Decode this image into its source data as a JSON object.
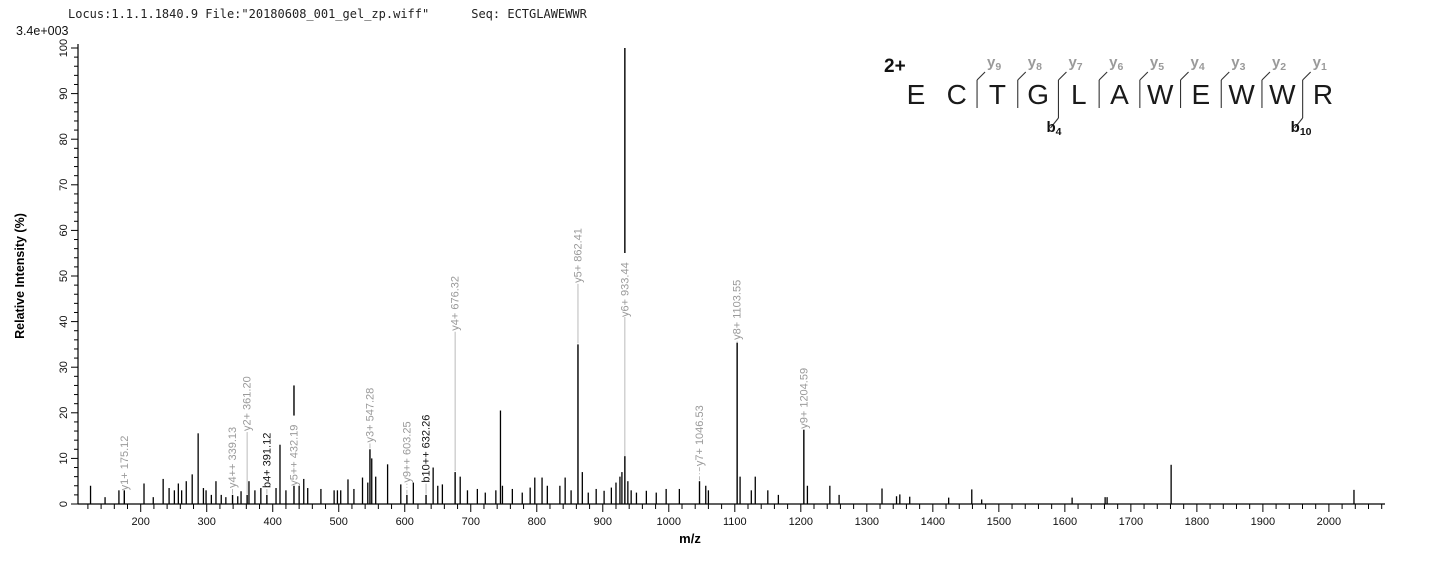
{
  "header": {
    "locus_line": "Locus:1.1.1.1840.9 File:\"20180608_001_gel_zp.wiff\"",
    "seq_line": "Seq: ECTGLAWEWWR",
    "max_intensity_counts": "3.4e+003"
  },
  "chart_data": {
    "type": "bar",
    "title": "MS/MS spectrum",
    "xlabel": "m/z",
    "ylabel": "Relative  Intensity (%)",
    "xlim": [
      105,
      2085
    ],
    "ylim": [
      0,
      100
    ],
    "x_major_ticks": [
      200,
      300,
      400,
      500,
      600,
      700,
      800,
      900,
      1000,
      1100,
      1200,
      1300,
      1400,
      1500,
      1600,
      1700,
      1800,
      1900,
      2000
    ],
    "x_minor_step": 20,
    "y_major_ticks": [
      0,
      10,
      20,
      30,
      40,
      50,
      60,
      70,
      80,
      90,
      100
    ],
    "y_minor_step": 2,
    "grid": false,
    "annotated_peaks": [
      {
        "label": "y1+ 175.12",
        "mz": 175.12,
        "intensity": 4,
        "label_base": 3,
        "color": "gray",
        "dash": false
      },
      {
        "label": "y4++ 339.13",
        "mz": 339.13,
        "intensity": 2,
        "label_base": 3.5,
        "color": "gray",
        "dash": false
      },
      {
        "label": "y2+ 361.20",
        "mz": 361.2,
        "intensity": 2,
        "label_base": 16,
        "color": "gray",
        "dash": false
      },
      {
        "label": "b4+ 391.12",
        "mz": 391.12,
        "intensity": 2,
        "label_base": 3.5,
        "color": "black",
        "dash": false
      },
      {
        "label": "y5++ 432.19",
        "mz": 432.19,
        "intensity": 26,
        "label_base": 4,
        "color": "gray",
        "dash": false
      },
      {
        "label": "y3+ 547.28",
        "mz": 547.28,
        "intensity": 12,
        "label_base": 13.5,
        "color": "gray",
        "dash": false
      },
      {
        "label": "y9++ 603.25",
        "mz": 603.25,
        "intensity": 2,
        "label_base": 4.7,
        "color": "gray",
        "dash": true
      },
      {
        "label": "b10++ 632.26",
        "mz": 632.26,
        "intensity": 2,
        "label_base": 4.7,
        "color": "black",
        "dash": false
      },
      {
        "label": "y4+ 676.32",
        "mz": 676.32,
        "intensity": 7,
        "label_base": 38,
        "color": "gray",
        "dash": false
      },
      {
        "label": "y5+ 862.41",
        "mz": 862.41,
        "intensity": 35,
        "label_base": 48.5,
        "color": "gray",
        "dash": false
      },
      {
        "label": "y6+ 933.44",
        "mz": 933.44,
        "intensity": 100,
        "label_base": 41,
        "color": "gray",
        "dash": false,
        "bottom_keep": 10.5
      },
      {
        "label": "y7+ 1046.53",
        "mz": 1046.53,
        "intensity": 5,
        "label_base": 8.3,
        "color": "gray",
        "dash": true
      },
      {
        "label": "y8+ 1103.55",
        "mz": 1103.55,
        "intensity": 35.4,
        "label_base": 36,
        "color": "gray",
        "dash": false
      },
      {
        "label": "y9+ 1204.59",
        "mz": 1204.59,
        "intensity": 16.3,
        "label_base": 16.5,
        "color": "gray",
        "dash": false
      }
    ],
    "peaks": [
      [
        124,
        4
      ],
      [
        146,
        1.5
      ],
      [
        167,
        3
      ],
      [
        205,
        4.5
      ],
      [
        219,
        1.5
      ],
      [
        234,
        5.5
      ],
      [
        243,
        3.5
      ],
      [
        251,
        3
      ],
      [
        257,
        4.5
      ],
      [
        262,
        3
      ],
      [
        269,
        5
      ],
      [
        278,
        6.5
      ],
      [
        287,
        15.5
      ],
      [
        295,
        3.5
      ],
      [
        299,
        3
      ],
      [
        307,
        2
      ],
      [
        314,
        5
      ],
      [
        322,
        2
      ],
      [
        329,
        1.5
      ],
      [
        347,
        1.7
      ],
      [
        352,
        2.8
      ],
      [
        364,
        5
      ],
      [
        373,
        3
      ],
      [
        382,
        3.5
      ],
      [
        405,
        3.5
      ],
      [
        411,
        13
      ],
      [
        420,
        3
      ],
      [
        440,
        4
      ],
      [
        447,
        5.5
      ],
      [
        453,
        3.5
      ],
      [
        473,
        3.3
      ],
      [
        493,
        3
      ],
      [
        498,
        3
      ],
      [
        503,
        3
      ],
      [
        514,
        5.4
      ],
      [
        523,
        3.3
      ],
      [
        536,
        5.8
      ],
      [
        544,
        4.7
      ],
      [
        550,
        10
      ],
      [
        556,
        6
      ],
      [
        574,
        8.7
      ],
      [
        594,
        4.3
      ],
      [
        613,
        4.7
      ],
      [
        643,
        8
      ],
      [
        650,
        4
      ],
      [
        657,
        4.3
      ],
      [
        684,
        6
      ],
      [
        695,
        3
      ],
      [
        710,
        3.3
      ],
      [
        722,
        2.5
      ],
      [
        738,
        3
      ],
      [
        745,
        20.5
      ],
      [
        748,
        4
      ],
      [
        763,
        3.3
      ],
      [
        778,
        2.5
      ],
      [
        790,
        3.6
      ],
      [
        797,
        5.8
      ],
      [
        808,
        5.8
      ],
      [
        816,
        4
      ],
      [
        835,
        4
      ],
      [
        843,
        5.8
      ],
      [
        852,
        3
      ],
      [
        869,
        7
      ],
      [
        878,
        2.5
      ],
      [
        890,
        3.3
      ],
      [
        902,
        2.9
      ],
      [
        913,
        3.6
      ],
      [
        920,
        4.7
      ],
      [
        926,
        6
      ],
      [
        929,
        7
      ],
      [
        938,
        5
      ],
      [
        943,
        3
      ],
      [
        951,
        2.5
      ],
      [
        966,
        2.9
      ],
      [
        981,
        2.5
      ],
      [
        996,
        3.3
      ],
      [
        1016,
        3.3
      ],
      [
        1056,
        4
      ],
      [
        1060,
        3
      ],
      [
        1108,
        6
      ],
      [
        1125,
        3
      ],
      [
        1131,
        6
      ],
      [
        1150,
        3
      ],
      [
        1166,
        2
      ],
      [
        1210,
        4
      ],
      [
        1244,
        4
      ],
      [
        1258,
        2
      ],
      [
        1323,
        3.4
      ],
      [
        1345,
        1.7
      ],
      [
        1350,
        2.1
      ],
      [
        1365,
        1.6
      ],
      [
        1424,
        1.4
      ],
      [
        1459,
        3.2
      ],
      [
        1474,
        1
      ],
      [
        1611,
        1.4
      ],
      [
        1661,
        1.5
      ],
      [
        1664,
        1.5
      ],
      [
        1761,
        8.6
      ],
      [
        2038,
        3.1
      ]
    ],
    "colors": {
      "peak": "#000000",
      "label_gray": "#9a9a9a",
      "label_black": "#111111",
      "leader": "#b3b3b3",
      "axis": "#000000"
    }
  },
  "annotation": {
    "charge": "2+",
    "sequence": [
      "E",
      "C",
      "T",
      "G",
      "L",
      "A",
      "W",
      "E",
      "W",
      "W",
      "R"
    ],
    "y_ions": [
      {
        "name": "y",
        "sub": "9",
        "boundary": 2
      },
      {
        "name": "y",
        "sub": "8",
        "boundary": 3
      },
      {
        "name": "y",
        "sub": "7",
        "boundary": 4
      },
      {
        "name": "y",
        "sub": "6",
        "boundary": 5
      },
      {
        "name": "y",
        "sub": "5",
        "boundary": 6
      },
      {
        "name": "y",
        "sub": "4",
        "boundary": 7
      },
      {
        "name": "y",
        "sub": "3",
        "boundary": 8
      },
      {
        "name": "y",
        "sub": "2",
        "boundary": 9
      },
      {
        "name": "y",
        "sub": "1",
        "boundary": 10
      }
    ],
    "b_ions": [
      {
        "name": "b",
        "sub": "4",
        "boundary": 4
      },
      {
        "name": "b",
        "sub": "10",
        "boundary": 10
      }
    ]
  }
}
